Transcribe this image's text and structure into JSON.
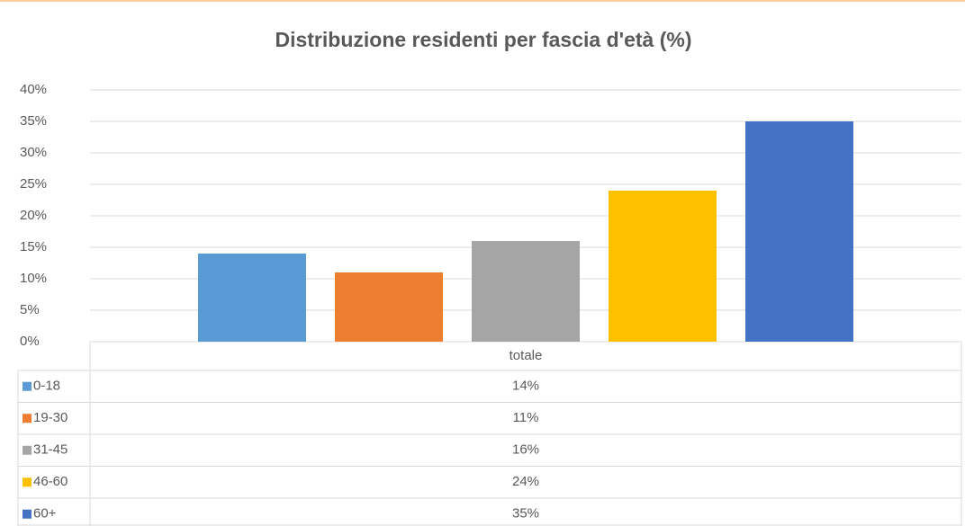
{
  "chart_data": {
    "type": "bar",
    "title": "Distribuzione residenti per fascia d'età (%)",
    "categories": [
      "totale"
    ],
    "series": [
      {
        "name": "0-18",
        "color": "#5b9bd5",
        "values": [
          14
        ],
        "value_labels": [
          "14%"
        ]
      },
      {
        "name": "19-30",
        "color": "#ed7d31",
        "values": [
          11
        ],
        "value_labels": [
          "11%"
        ]
      },
      {
        "name": "31-45",
        "color": "#a5a5a5",
        "values": [
          16
        ],
        "value_labels": [
          "16%"
        ]
      },
      {
        "name": "46-60",
        "color": "#ffc000",
        "values": [
          24
        ],
        "value_labels": [
          "24%"
        ]
      },
      {
        "name": "60+",
        "color": "#4472c4",
        "values": [
          35
        ],
        "value_labels": [
          "35%"
        ]
      }
    ],
    "ylim": [
      0,
      40
    ],
    "yticks": [
      {
        "value": 0,
        "label": "0%"
      },
      {
        "value": 5,
        "label": "5%"
      },
      {
        "value": 10,
        "label": "10%"
      },
      {
        "value": 15,
        "label": "15%"
      },
      {
        "value": 20,
        "label": "20%"
      },
      {
        "value": 25,
        "label": "25%"
      },
      {
        "value": 30,
        "label": "30%"
      },
      {
        "value": 35,
        "label": "35%"
      },
      {
        "value": 40,
        "label": "40%"
      }
    ],
    "grid": true
  }
}
